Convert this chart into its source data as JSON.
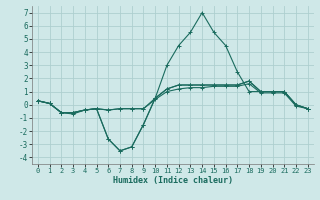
{
  "xlabel": "Humidex (Indice chaleur)",
  "bg_color": "#cfe8e8",
  "grid_color": "#aecfcf",
  "line_color": "#1a6b5e",
  "xlim": [
    -0.5,
    23.5
  ],
  "ylim": [
    -4.5,
    7.5
  ],
  "yticks": [
    -4,
    -3,
    -2,
    -1,
    0,
    1,
    2,
    3,
    4,
    5,
    6,
    7
  ],
  "xticks": [
    0,
    1,
    2,
    3,
    4,
    5,
    6,
    7,
    8,
    9,
    10,
    11,
    12,
    13,
    14,
    15,
    16,
    17,
    18,
    19,
    20,
    21,
    22,
    23
  ],
  "series1": [
    0.3,
    0.1,
    -0.6,
    -0.6,
    -0.4,
    -0.3,
    -2.6,
    -3.5,
    -3.2,
    -1.5,
    0.5,
    3.0,
    4.5,
    5.5,
    7.0,
    5.5,
    4.5,
    2.5,
    1.0,
    1.0,
    1.0,
    1.0,
    0.0,
    -0.3
  ],
  "series2": [
    0.3,
    0.1,
    -0.6,
    -0.6,
    -0.4,
    -0.3,
    -2.6,
    -3.5,
    -3.2,
    -1.5,
    0.5,
    1.2,
    1.5,
    1.5,
    1.5,
    1.5,
    1.5,
    1.5,
    1.8,
    1.0,
    1.0,
    1.0,
    0.0,
    -0.3
  ],
  "series3": [
    0.3,
    0.1,
    -0.6,
    -0.6,
    -0.4,
    -0.3,
    -0.4,
    -0.3,
    -0.3,
    -0.3,
    0.5,
    1.2,
    1.5,
    1.5,
    1.5,
    1.5,
    1.5,
    1.5,
    1.8,
    1.0,
    1.0,
    1.0,
    0.0,
    -0.3
  ],
  "series4": [
    0.3,
    0.1,
    -0.6,
    -0.7,
    -0.4,
    -0.3,
    -0.4,
    -0.3,
    -0.3,
    -0.3,
    0.4,
    1.0,
    1.2,
    1.3,
    1.3,
    1.4,
    1.4,
    1.4,
    1.6,
    0.9,
    0.9,
    0.9,
    -0.1,
    -0.3
  ]
}
